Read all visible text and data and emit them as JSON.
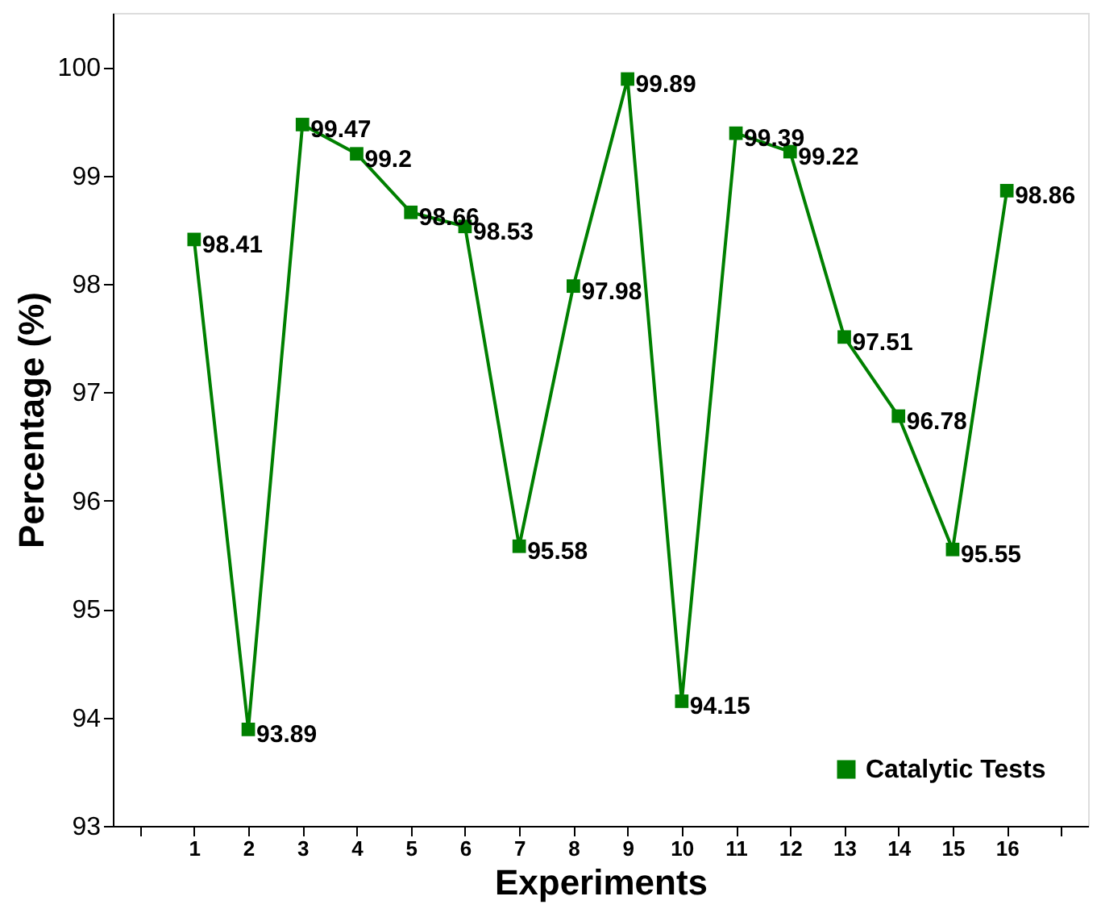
{
  "chart_data": {
    "type": "line",
    "xlabel": "Experiments",
    "ylabel": "Percentage (%)",
    "x": [
      1,
      2,
      3,
      4,
      5,
      6,
      7,
      8,
      9,
      10,
      11,
      12,
      13,
      14,
      15,
      16
    ],
    "series": [
      {
        "name": "Catalytic Tests",
        "color": "#008000",
        "values": [
          98.41,
          93.89,
          99.47,
          99.2,
          98.66,
          98.53,
          95.58,
          97.98,
          99.89,
          94.15,
          99.39,
          99.22,
          97.51,
          96.78,
          95.55,
          98.86
        ]
      }
    ],
    "xlim": [
      -0.5,
      17.5
    ],
    "xticks": [
      {
        "value": 0,
        "label": null
      },
      1,
      2,
      3,
      4,
      5,
      6,
      7,
      8,
      9,
      10,
      11,
      12,
      13,
      14,
      15,
      16,
      {
        "value": 17,
        "label": null
      }
    ],
    "ylim": [
      93,
      100.5
    ],
    "yticks": [
      93,
      94,
      95,
      96,
      97,
      98,
      99,
      100
    ],
    "data_labels": true,
    "marker": "square",
    "line_style": "solid",
    "legend": "bottom right",
    "grid": false
  }
}
